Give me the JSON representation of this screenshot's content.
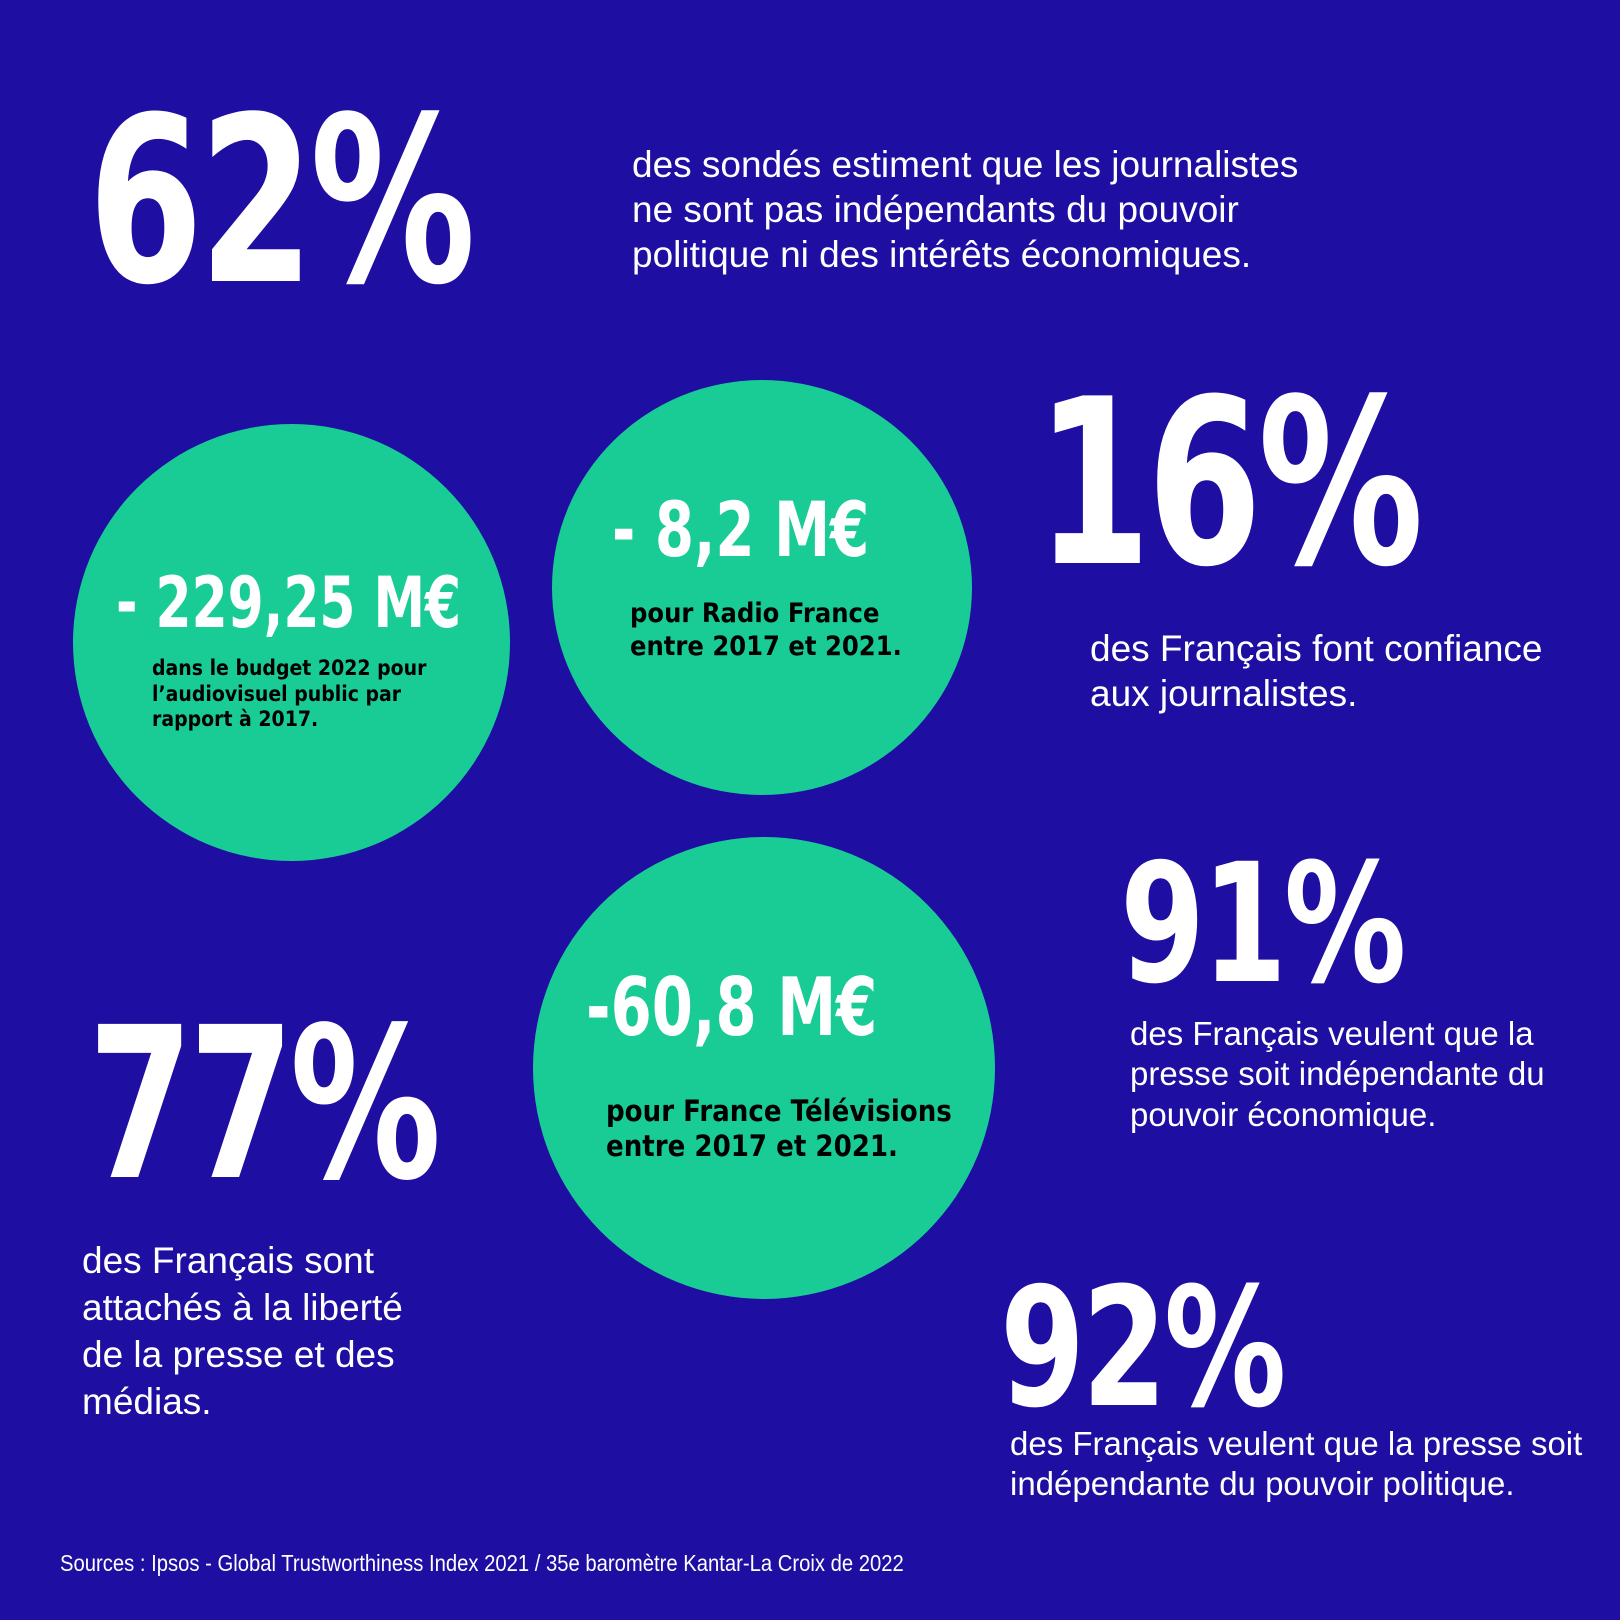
{
  "colors": {
    "background": "#1e0ea1",
    "circle": "#19cc96",
    "text": "#ffffff",
    "circle_text": "#000000"
  },
  "stats": [
    {
      "value": "62%",
      "text": [
        "des sondés estiment que les journalistes",
        "ne sont pas indépendants du pouvoir",
        "politique ni des intérêts économiques."
      ]
    },
    {
      "value": "16%",
      "text": [
        "des Français font confiance",
        "aux journalistes."
      ]
    },
    {
      "value": "91%",
      "text": [
        "des Français veulent que la",
        "presse soit indépendante du",
        "pouvoir économique."
      ]
    },
    {
      "value": "77%",
      "text": [
        "des Français sont",
        "attachés à la liberté",
        "de la presse et des",
        "médias."
      ]
    },
    {
      "value": "92%",
      "text": [
        "des Français veulent que la presse soit",
        "indépendante du pouvoir politique."
      ]
    }
  ],
  "circles": [
    {
      "value": "- 229,25 M€",
      "text": [
        "dans le budget 2022 pour",
        "l’audiovisuel public par",
        "rapport à  2017."
      ]
    },
    {
      "value": "- 8,2 M€",
      "text": [
        "pour Radio France",
        "entre 2017 et 2021."
      ]
    },
    {
      "value": "-60,8 M€",
      "text": [
        "pour France Télévisions",
        "entre 2017 et 2021."
      ]
    }
  ],
  "sources": "Sources : Ipsos - Global Trustworthiness Index 2021 / 35e baromètre Kantar-La Croix de 2022"
}
